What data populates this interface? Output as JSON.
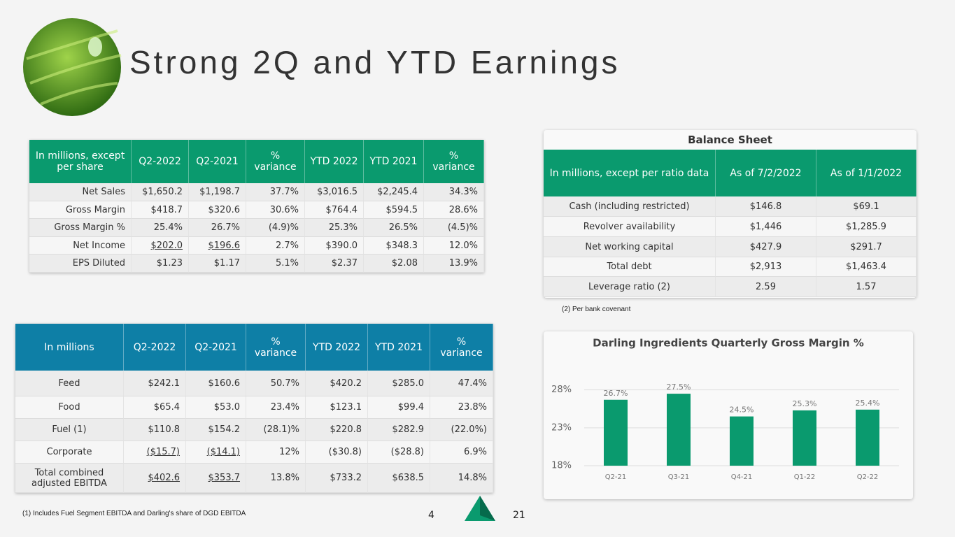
{
  "header": {
    "title": "Strong 2Q and YTD Earnings"
  },
  "earnings_table": {
    "columns": [
      "In millions, except per share",
      "Q2-2022",
      "Q2-2021",
      "% variance",
      "YTD 2022",
      "YTD 2021",
      "% variance"
    ],
    "rows": [
      [
        "Net Sales",
        "$1,650.2",
        "$1,198.7",
        "37.7%",
        "$3,016.5",
        "$2,245.4",
        "34.3%"
      ],
      [
        "Gross Margin",
        "$418.7",
        "$320.6",
        "30.6%",
        "$764.4",
        "$594.5",
        "28.6%"
      ],
      [
        "Gross Margin %",
        "25.4%",
        "26.7%",
        "(4.9)%",
        "25.3%",
        "26.5%",
        "(4.5)%"
      ],
      [
        "Net Income",
        "$202.0",
        "$196.6",
        "2.7%",
        "$390.0",
        "$348.3",
        "12.0%"
      ],
      [
        "EPS Diluted",
        "$1.23",
        "$1.17",
        "5.1%",
        "$2.37",
        "$2.08",
        "13.9%"
      ]
    ]
  },
  "balance_sheet": {
    "title": "Balance Sheet",
    "columns": [
      "In millions, except per ratio data",
      "As of 7/2/2022",
      "As of 1/1/2022"
    ],
    "rows": [
      [
        "Cash (including restricted)",
        "$146.8",
        "$69.1"
      ],
      [
        "Revolver availability",
        "$1,446",
        "$1,285.9"
      ],
      [
        "Net working capital",
        "$427.9",
        "$291.7"
      ],
      [
        "Total debt",
        "$2,913",
        "$1,463.4"
      ],
      [
        "Leverage ratio (2)",
        "2.59",
        "1.57"
      ]
    ],
    "footnote": "(2) Per bank covenant"
  },
  "ebitda_table": {
    "columns": [
      "In millions",
      "Q2-2022",
      "Q2-2021",
      "% variance",
      "YTD 2022",
      "YTD 2021",
      "% variance"
    ],
    "rows": [
      [
        "Feed",
        "$242.1",
        "$160.6",
        "50.7%",
        "$420.2",
        "$285.0",
        "47.4%"
      ],
      [
        "Food",
        "$65.4",
        "$53.0",
        "23.4%",
        "$123.1",
        "$99.4",
        "23.8%"
      ],
      [
        "Fuel (1)",
        "$110.8",
        "$154.2",
        "(28.1)%",
        "$220.8",
        "$282.9",
        "(22.0%)"
      ],
      [
        "Corporate",
        "($15.7)",
        "($14.1)",
        "12%",
        "($30.8)",
        "($28.8)",
        "6.9%"
      ],
      [
        "Total combined adjusted EBITDA",
        "$402.6",
        "$353.7",
        "13.8%",
        "$733.2",
        "$638.5",
        "14.8%"
      ]
    ],
    "footnote": "(1) Includes Fuel Segment EBITDA and Darling's share of DGD EBITDA"
  },
  "chart_data": {
    "type": "bar",
    "title": "Darling Ingredients Quarterly Gross Margin %",
    "categories": [
      "Q2-21",
      "Q3-21",
      "Q4-21",
      "Q1-22",
      "Q2-22"
    ],
    "values": [
      26.7,
      27.5,
      24.5,
      25.3,
      25.4
    ],
    "value_labels": [
      "26.7%",
      "27.5%",
      "24.5%",
      "25.3%",
      "25.4%"
    ],
    "color": "#0a9a6e",
    "ylim": [
      18,
      30
    ],
    "yticks": [
      {
        "value": 18,
        "label": "18%"
      },
      {
        "value": 23,
        "label": "23%"
      },
      {
        "value": 28,
        "label": "28%"
      }
    ],
    "grid": true
  },
  "footer": {
    "page": "4",
    "slide_number": "21"
  }
}
